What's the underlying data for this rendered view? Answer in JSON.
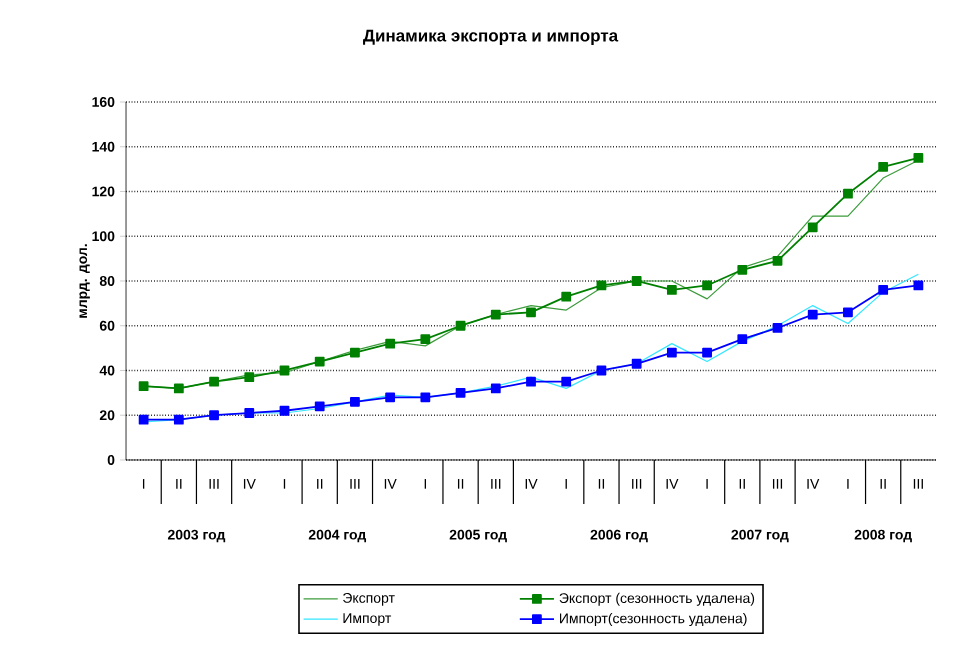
{
  "chart_data": {
    "type": "line",
    "title": "Динамика экспорта и импорта",
    "ylabel": "млрд. дол.",
    "categories": [
      "I",
      "II",
      "III",
      "IV",
      "I",
      "II",
      "III",
      "IV",
      "I",
      "II",
      "III",
      "IV",
      "I",
      "II",
      "III",
      "IV",
      "I",
      "II",
      "III",
      "IV",
      "I",
      "II",
      "III"
    ],
    "annotations": [
      "2003 год",
      "2004 год",
      "2005 год",
      "2006 год",
      "2007 год",
      "2008 год"
    ],
    "series": [
      {
        "name": "Экспорт",
        "color": "#3c9c3c",
        "marker": "none",
        "values": [
          33,
          32,
          35,
          38,
          39,
          44,
          49,
          53,
          51,
          60,
          65,
          69,
          67,
          77,
          80,
          80,
          72,
          86,
          91,
          109,
          109,
          126,
          134
        ]
      },
      {
        "name": "Экспорт (сезонность удалена)",
        "color": "#008000",
        "marker": "square",
        "values": [
          33,
          32,
          35,
          37,
          40,
          44,
          48,
          52,
          54,
          60,
          65,
          66,
          73,
          78,
          80,
          76,
          78,
          85,
          89,
          104,
          119,
          131,
          135
        ]
      },
      {
        "name": "Импорт",
        "color": "#33e6ff",
        "marker": "none",
        "values": [
          17,
          18,
          20,
          21,
          21,
          23,
          26,
          29,
          28,
          30,
          33,
          37,
          32,
          40,
          43,
          52,
          44,
          53,
          60,
          69,
          61,
          75,
          83
        ]
      },
      {
        "name": "Импорт(сезонность удалена)",
        "color": "#0000ff",
        "marker": "square",
        "values": [
          18,
          18,
          20,
          21,
          22,
          24,
          26,
          28,
          28,
          30,
          32,
          35,
          35,
          40,
          43,
          48,
          48,
          54,
          59,
          65,
          66,
          76,
          78
        ]
      }
    ],
    "ylim": [
      0,
      160
    ],
    "yticks": [
      0,
      20,
      40,
      60,
      80,
      100,
      120,
      140,
      160
    ],
    "grid": "y",
    "legend": "bottom",
    "line_style": "solid"
  }
}
